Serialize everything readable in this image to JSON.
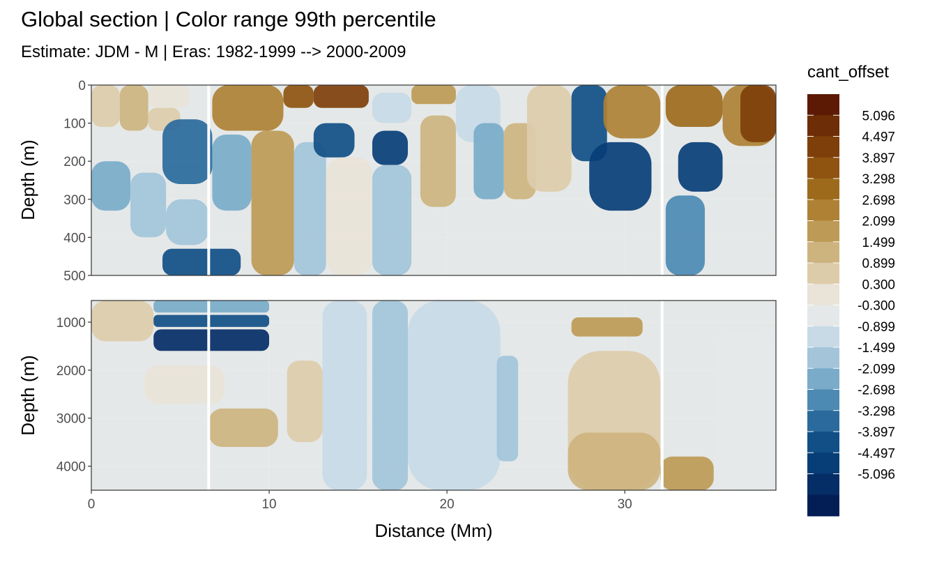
{
  "chart_data": {
    "type": "heatmap",
    "title": "Global section | Color range 99th percentile",
    "subtitle": "Estimate: JDM - M | Eras: 1982-1999 --> 2000-2009",
    "xlabel": "Distance (Mm)",
    "ylabel": "Depth (m)",
    "xlim": [
      0,
      38.5
    ],
    "x_ticks": [
      0,
      10,
      20,
      30
    ],
    "panels": [
      {
        "ylim": [
          0,
          500
        ],
        "y_ticks": [
          0,
          100,
          200,
          300,
          400,
          500
        ],
        "reversed": true
      },
      {
        "ylim": [
          550,
          4500
        ],
        "y_ticks": [
          1000,
          2000,
          3000,
          4000
        ],
        "reversed": true
      }
    ],
    "section_breaks": [
      6.6,
      32.1
    ],
    "legend": {
      "title": "cant_offset",
      "position": "right",
      "labels": [
        "5.096",
        "4.497",
        "3.897",
        "3.298",
        "2.698",
        "2.099",
        "1.499",
        "0.899",
        "0.300",
        "-0.300",
        "-0.899",
        "-1.499",
        "-2.099",
        "-2.698",
        "-3.298",
        "-3.897",
        "-4.497",
        "-5.096"
      ],
      "colors": [
        "#5c1a05",
        "#6d2d06",
        "#7f3f0a",
        "#8e5410",
        "#9d6a1c",
        "#ae8135",
        "#bd9a55",
        "#cdb47f",
        "#ddccaa",
        "#e9e3d8",
        "#e5e8e8",
        "#c7dae6",
        "#a3c4d9",
        "#7aabc9",
        "#4d8ab3",
        "#2a6a9c",
        "#114f86",
        "#083e77",
        "#052d66",
        "#031e55"
      ]
    },
    "regions": [
      {
        "p": 0,
        "x0": 0,
        "x1": 1.6,
        "y0": 0,
        "y1": 110,
        "c": 8
      },
      {
        "p": 0,
        "x0": 1.6,
        "x1": 3.2,
        "y0": 0,
        "y1": 120,
        "c": 7
      },
      {
        "p": 0,
        "x0": 3.2,
        "x1": 5.5,
        "y0": 0,
        "y1": 60,
        "c": 9
      },
      {
        "p": 0,
        "x0": 3.2,
        "x1": 5.0,
        "y0": 60,
        "y1": 120,
        "c": 8
      },
      {
        "p": 0,
        "x0": 4.0,
        "x1": 6.8,
        "y0": 90,
        "y1": 260,
        "c": 15
      },
      {
        "p": 0,
        "x0": 0,
        "x1": 2.2,
        "y0": 200,
        "y1": 330,
        "c": 13
      },
      {
        "p": 0,
        "x0": 2.2,
        "x1": 4.2,
        "y0": 230,
        "y1": 400,
        "c": 12
      },
      {
        "p": 0,
        "x0": 4.2,
        "x1": 6.6,
        "y0": 300,
        "y1": 420,
        "c": 12
      },
      {
        "p": 0,
        "x0": 4.0,
        "x1": 8.4,
        "y0": 430,
        "y1": 500,
        "c": 16
      },
      {
        "p": 0,
        "x0": 6.8,
        "x1": 10.8,
        "y0": 0,
        "y1": 120,
        "c": 5
      },
      {
        "p": 0,
        "x0": 6.8,
        "x1": 9.0,
        "y0": 130,
        "y1": 330,
        "c": 13
      },
      {
        "p": 0,
        "x0": 9.0,
        "x1": 11.4,
        "y0": 120,
        "y1": 500,
        "c": 6
      },
      {
        "p": 0,
        "x0": 10.8,
        "x1": 12.5,
        "y0": 0,
        "y1": 60,
        "c": 3
      },
      {
        "p": 0,
        "x0": 12.5,
        "x1": 15.6,
        "y0": 0,
        "y1": 60,
        "c": 2
      },
      {
        "p": 0,
        "x0": 11.4,
        "x1": 13.2,
        "y0": 150,
        "y1": 500,
        "c": 12
      },
      {
        "p": 0,
        "x0": 12.5,
        "x1": 14.8,
        "y0": 100,
        "y1": 190,
        "c": 16
      },
      {
        "p": 0,
        "x0": 13.2,
        "x1": 15.8,
        "y0": 190,
        "y1": 500,
        "c": 9
      },
      {
        "p": 0,
        "x0": 15.8,
        "x1": 18.0,
        "y0": 20,
        "y1": 100,
        "c": 11
      },
      {
        "p": 0,
        "x0": 15.8,
        "x1": 17.8,
        "y0": 120,
        "y1": 210,
        "c": 17
      },
      {
        "p": 0,
        "x0": 15.8,
        "x1": 18.0,
        "y0": 210,
        "y1": 500,
        "c": 12
      },
      {
        "p": 0,
        "x0": 18.0,
        "x1": 20.5,
        "y0": 0,
        "y1": 50,
        "c": 6
      },
      {
        "p": 0,
        "x0": 18.5,
        "x1": 20.5,
        "y0": 80,
        "y1": 320,
        "c": 7
      },
      {
        "p": 0,
        "x0": 20.5,
        "x1": 23.0,
        "y0": 0,
        "y1": 150,
        "c": 11
      },
      {
        "p": 0,
        "x0": 21.5,
        "x1": 23.2,
        "y0": 100,
        "y1": 300,
        "c": 13
      },
      {
        "p": 0,
        "x0": 23.2,
        "x1": 25.0,
        "y0": 100,
        "y1": 300,
        "c": 7
      },
      {
        "p": 0,
        "x0": 24.5,
        "x1": 27.0,
        "y0": 0,
        "y1": 280,
        "c": 8
      },
      {
        "p": 0,
        "x0": 27.0,
        "x1": 29.0,
        "y0": 0,
        "y1": 200,
        "c": 16
      },
      {
        "p": 0,
        "x0": 28.0,
        "x1": 31.5,
        "y0": 150,
        "y1": 330,
        "c": 17
      },
      {
        "p": 0,
        "x0": 28.8,
        "x1": 32.0,
        "y0": 0,
        "y1": 140,
        "c": 5
      },
      {
        "p": 0,
        "x0": 32.3,
        "x1": 35.5,
        "y0": 0,
        "y1": 110,
        "c": 4
      },
      {
        "p": 0,
        "x0": 33.0,
        "x1": 35.5,
        "y0": 150,
        "y1": 280,
        "c": 17
      },
      {
        "p": 0,
        "x0": 35.5,
        "x1": 38.5,
        "y0": 0,
        "y1": 160,
        "c": 5
      },
      {
        "p": 0,
        "x0": 36.5,
        "x1": 38.5,
        "y0": 0,
        "y1": 150,
        "c": 2
      },
      {
        "p": 0,
        "x0": 32.3,
        "x1": 34.5,
        "y0": 290,
        "y1": 500,
        "c": 14
      },
      {
        "p": 1,
        "x0": 0,
        "x1": 3.5,
        "y0": 550,
        "y1": 1400,
        "c": 8
      },
      {
        "p": 1,
        "x0": 3.5,
        "x1": 10,
        "y0": 550,
        "y1": 800,
        "c": 13
      },
      {
        "p": 1,
        "x0": 3.5,
        "x1": 10,
        "y0": 850,
        "y1": 1100,
        "c": 16
      },
      {
        "p": 1,
        "x0": 3.5,
        "x1": 10,
        "y0": 1150,
        "y1": 1600,
        "c": 18
      },
      {
        "p": 1,
        "x0": 3.0,
        "x1": 7.5,
        "y0": 1900,
        "y1": 2700,
        "c": 9
      },
      {
        "p": 1,
        "x0": 6.6,
        "x1": 10.5,
        "y0": 2800,
        "y1": 3600,
        "c": 7
      },
      {
        "p": 1,
        "x0": 11.0,
        "x1": 13.0,
        "y0": 1800,
        "y1": 3500,
        "c": 8
      },
      {
        "p": 1,
        "x0": 13.0,
        "x1": 15.5,
        "y0": 550,
        "y1": 4500,
        "c": 11
      },
      {
        "p": 1,
        "x0": 15.8,
        "x1": 17.8,
        "y0": 550,
        "y1": 4500,
        "c": 12
      },
      {
        "p": 1,
        "x0": 17.8,
        "x1": 23.0,
        "y0": 550,
        "y1": 4500,
        "c": 11
      },
      {
        "p": 1,
        "x0": 22.8,
        "x1": 24.0,
        "y0": 1700,
        "y1": 3900,
        "c": 12
      },
      {
        "p": 1,
        "x0": 27.0,
        "x1": 31.0,
        "y0": 900,
        "y1": 1300,
        "c": 6
      },
      {
        "p": 1,
        "x0": 26.8,
        "x1": 32.0,
        "y0": 1600,
        "y1": 4500,
        "c": 8
      },
      {
        "p": 1,
        "x0": 26.8,
        "x1": 32.0,
        "y0": 3300,
        "y1": 4500,
        "c": 7
      },
      {
        "p": 1,
        "x0": 32.0,
        "x1": 35.0,
        "y0": 3800,
        "y1": 4500,
        "c": 6
      },
      {
        "p": 1,
        "x0": 35.0,
        "x1": 38.5,
        "y0": 1200,
        "y1": 4500,
        "c": 10
      }
    ]
  }
}
